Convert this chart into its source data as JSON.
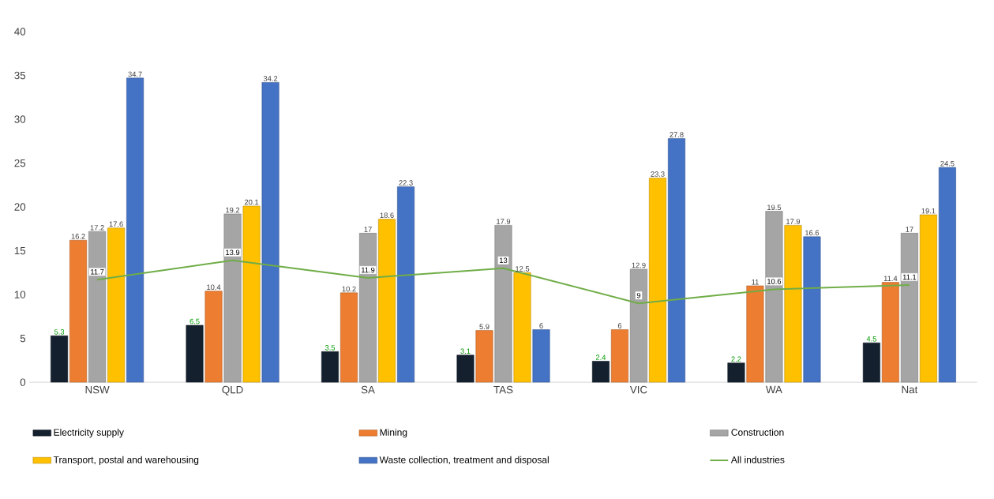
{
  "chart_data": {
    "type": "bar",
    "categories": [
      "NSW",
      "QLD",
      "SA",
      "TAS",
      "VIC",
      "WA",
      "Nat"
    ],
    "series": [
      {
        "name": "Electricity supply",
        "color": "#14202e",
        "values": [
          5.3,
          6.5,
          3.5,
          3.1,
          2.4,
          2.2,
          4.5
        ]
      },
      {
        "name": "Mining",
        "color": "#ed7d31",
        "values": [
          16.2,
          10.4,
          10.2,
          5.9,
          6,
          11,
          11.4
        ]
      },
      {
        "name": "Construction",
        "color": "#a5a5a5",
        "values": [
          17.2,
          19.2,
          17,
          17.9,
          12.9,
          19.5,
          17
        ]
      },
      {
        "name": "Transport, postal and warehousing",
        "color": "#ffc000",
        "values": [
          17.6,
          20.1,
          18.6,
          12.5,
          23.3,
          17.9,
          19.1
        ]
      },
      {
        "name": "Waste collection, treatment and disposal",
        "color": "#4472c4",
        "values": [
          34.7,
          34.2,
          22.3,
          6,
          27.8,
          16.6,
          24.5
        ]
      },
      {
        "name": "All industries",
        "color": "#70ad47",
        "type": "line",
        "values": [
          11.7,
          13.9,
          11.9,
          13,
          9,
          10.6,
          11.1
        ]
      }
    ],
    "ylim": [
      0,
      40
    ],
    "yticks": [
      0,
      5,
      10,
      15,
      20,
      25,
      30,
      35,
      40
    ],
    "data_labels": true,
    "legend": "bottom",
    "marker": "none"
  }
}
